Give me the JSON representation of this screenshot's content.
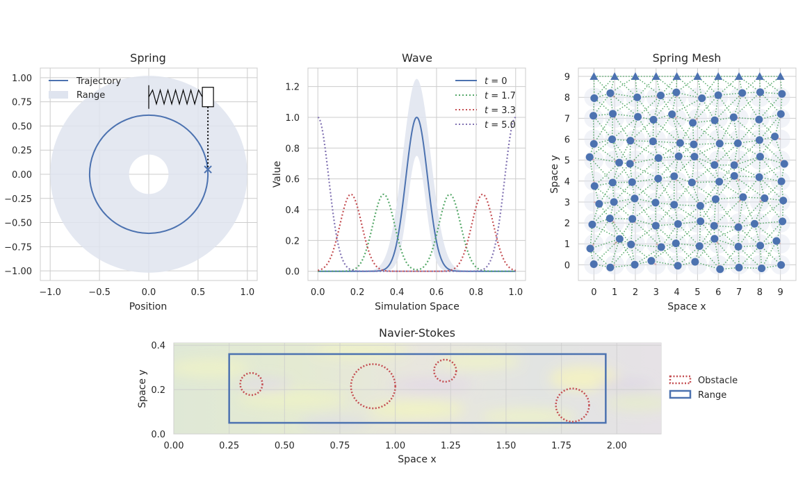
{
  "colors": {
    "blue": "#4c72b0",
    "green": "#55a868",
    "red": "#c44e52",
    "purple": "#8172b2",
    "band": "#dfe4ef",
    "grid": "#cccccc",
    "text": "#262626"
  },
  "chart_data": [
    {
      "id": "spring",
      "type": "line",
      "title": "Spring",
      "xlabel": "Position",
      "ylabel": "",
      "xlim": [
        -1.1,
        1.1
      ],
      "ylim": [
        -1.1,
        1.1
      ],
      "xticks": [
        "−1.0",
        "−0.5",
        "0.0",
        "0.5",
        "1.0"
      ],
      "yticks": [
        "1.00",
        "0.75",
        "0.50",
        "0.25",
        "0.00",
        "−0.25",
        "−0.50",
        "−0.75",
        "−1.00"
      ],
      "legend": [
        {
          "label": "Trajectory",
          "kind": "line"
        },
        {
          "label": "Range",
          "kind": "patch"
        }
      ],
      "legend_position": "top-left",
      "trajectory": {
        "shape": "circle",
        "center": [
          0,
          0
        ],
        "radius": 0.6
      },
      "range": {
        "shape": "annulus",
        "inner_radius": 0.2,
        "outer_radius": 1.0
      },
      "current_position": [
        0.6,
        0.05
      ],
      "spring_anchor": [
        0,
        0.8
      ],
      "mass_position": [
        0.6,
        0.8
      ]
    },
    {
      "id": "wave",
      "type": "line",
      "title": "Wave",
      "xlabel": "Simulation Space",
      "ylabel": "Value",
      "xlim": [
        -0.05,
        1.05
      ],
      "ylim": [
        -0.06,
        1.32
      ],
      "xticks": [
        "0.0",
        "0.2",
        "0.4",
        "0.6",
        "0.8",
        "1.0"
      ],
      "yticks": [
        "1.2",
        "1.0",
        "0.8",
        "0.6",
        "0.4",
        "0.2",
        "0.0"
      ],
      "legend_position": "top-right",
      "series": [
        {
          "name": "t = 0",
          "label_t": "0",
          "style": "solid",
          "peaks": [
            0.5
          ]
        },
        {
          "name": "t = 1.7",
          "label_t": "1.7",
          "style": "dotted",
          "peaks": [
            0.333,
            0.667
          ]
        },
        {
          "name": "t = 3.3",
          "label_t": "3.3",
          "style": "dotted",
          "peaks": [
            0.167,
            0.833
          ]
        },
        {
          "name": "t = 5.0",
          "label_t": "5.0",
          "style": "dotted",
          "peaks": [
            0.0,
            1.0
          ]
        }
      ],
      "peak_value": 0.5,
      "center_peak_value": 1.0,
      "band": {
        "center": 0.5,
        "upper_peak": 1.25,
        "lower_peak": 0.75
      }
    },
    {
      "id": "spring_mesh",
      "type": "scatter",
      "title": "Spring Mesh",
      "xlabel": "Space x",
      "ylabel": "Space y",
      "xlim": [
        -0.75,
        9.75
      ],
      "ylim": [
        -0.75,
        9.4
      ],
      "xticks": [
        "0",
        "1",
        "2",
        "3",
        "4",
        "5",
        "6",
        "7",
        "8",
        "9"
      ],
      "yticks": [
        "9",
        "8",
        "7",
        "6",
        "5",
        "4",
        "3",
        "2",
        "1",
        "0"
      ],
      "fixed_row_y": 9,
      "fixed_points_x": [
        0,
        1,
        2,
        3,
        4,
        5,
        6,
        7,
        8,
        9
      ]
    },
    {
      "id": "navier_stokes",
      "type": "heatmap",
      "title": "Navier-Stokes",
      "xlabel": "Space x",
      "ylabel": "Space y",
      "xlim": [
        0,
        2.2
      ],
      "ylim": [
        0,
        0.41
      ],
      "xticks": [
        "0.00",
        "0.25",
        "0.50",
        "0.75",
        "1.00",
        "1.25",
        "1.50",
        "1.75",
        "2.00"
      ],
      "yticks": [
        "0.4",
        "0.2",
        "0.0"
      ],
      "legend": [
        {
          "label": "Obstacle",
          "kind": "dotted-circle"
        },
        {
          "label": "Range",
          "kind": "rect"
        }
      ],
      "legend_position": "right",
      "range_rect": {
        "x0": 0.25,
        "x1": 1.95,
        "y0": 0.05,
        "y1": 0.36
      },
      "obstacles": [
        {
          "cx": 0.35,
          "cy": 0.225,
          "r": 0.05
        },
        {
          "cx": 0.9,
          "cy": 0.215,
          "r": 0.1
        },
        {
          "cx": 1.225,
          "cy": 0.285,
          "r": 0.05
        },
        {
          "cx": 1.8,
          "cy": 0.13,
          "r": 0.075
        }
      ]
    }
  ]
}
